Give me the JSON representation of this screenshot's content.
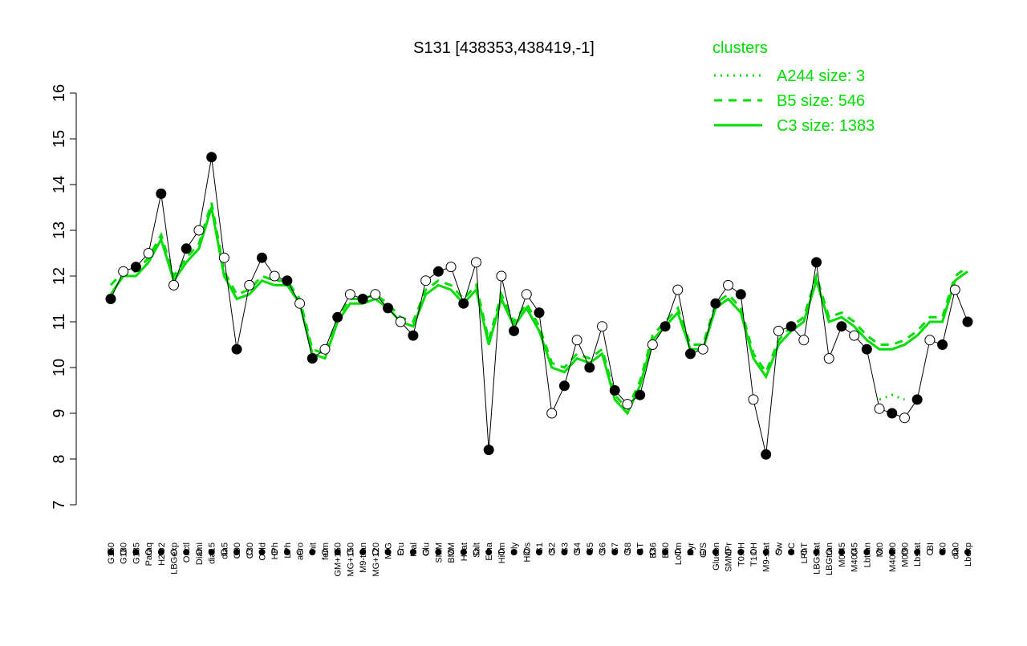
{
  "chart_data": {
    "type": "line",
    "title": "S131 [438353,438419,-1]",
    "legend_title": "clusters",
    "legend_position": "top-right",
    "categories": [
      "G150",
      "G180",
      "G135",
      "Paraq",
      "H2O2",
      "LBGexp",
      "Oxctl",
      "Diami",
      "dia15",
      "dia5",
      "C90",
      "C30",
      "Cold",
      "HPh",
      "LPh",
      "aero",
      "nit",
      "ferm",
      "GM+150",
      "MG+150",
      "M9-tran",
      "MG+120",
      "M/G",
      "Fru",
      "Mal",
      "Glu",
      "SMM",
      "BMM",
      "Heat",
      "Salt",
      "Etha",
      "HiTm",
      "Gly",
      "HiOs",
      "S1",
      "S2",
      "S3",
      "S4",
      "S5",
      "S6",
      "S7",
      "S8",
      "BT",
      "B36",
      "B60",
      "LoTm",
      "Pyr",
      "G/S",
      "Glucon",
      "SMMPr",
      "T0.0H",
      "T1.0H",
      "M9-stat",
      "Sw",
      "BC",
      "LPhT",
      "LBGstat",
      "LBGtran",
      "M0t45",
      "M40t45",
      "Lbtran",
      "Mt0",
      "M40t90",
      "M0t90",
      "Lbstat",
      "BI",
      "S0",
      "dia0",
      "Lbexp"
    ],
    "points": [
      11.5,
      12.1,
      12.2,
      12.5,
      13.8,
      11.8,
      12.6,
      13.0,
      14.6,
      12.4,
      10.4,
      11.8,
      12.4,
      12.0,
      11.9,
      11.4,
      10.2,
      10.4,
      11.1,
      11.6,
      11.5,
      11.6,
      11.3,
      11.0,
      10.7,
      11.9,
      12.1,
      12.2,
      11.4,
      12.3,
      8.2,
      12.0,
      10.8,
      11.6,
      11.2,
      9.0,
      9.6,
      10.6,
      10.0,
      10.9,
      9.5,
      9.2,
      9.4,
      10.5,
      10.9,
      11.7,
      10.3,
      10.4,
      11.4,
      11.8,
      11.6,
      9.3,
      8.1,
      10.8,
      10.9,
      10.6,
      12.3,
      10.2,
      10.9,
      10.7,
      10.4,
      9.1,
      9.0,
      8.9,
      9.3,
      10.6,
      10.5,
      11.7,
      11.0
    ],
    "series": [
      {
        "name": "A244 size: 3",
        "color": "#00dd00",
        "dash": "dotted",
        "values": [
          null,
          null,
          null,
          null,
          null,
          null,
          null,
          null,
          null,
          null,
          null,
          null,
          null,
          null,
          null,
          null,
          null,
          null,
          null,
          null,
          null,
          null,
          null,
          null,
          null,
          null,
          null,
          null,
          null,
          null,
          null,
          null,
          null,
          null,
          null,
          null,
          null,
          null,
          null,
          null,
          null,
          null,
          null,
          null,
          null,
          null,
          null,
          null,
          null,
          null,
          null,
          null,
          null,
          null,
          null,
          null,
          null,
          null,
          null,
          null,
          null,
          9.3,
          9.4,
          9.3,
          null,
          null,
          null,
          null,
          null
        ]
      },
      {
        "name": "B5 size: 546",
        "color": "#00dd00",
        "dash": "dashed",
        "values": [
          11.8,
          12.1,
          12.1,
          12.4,
          12.9,
          12.0,
          12.4,
          12.7,
          13.6,
          12.1,
          11.6,
          11.7,
          12.0,
          11.9,
          11.9,
          11.5,
          10.4,
          10.3,
          11.1,
          11.5,
          11.5,
          11.6,
          11.4,
          11.1,
          11.0,
          11.7,
          11.9,
          11.8,
          11.5,
          11.8,
          10.6,
          11.6,
          11.0,
          11.4,
          10.9,
          10.1,
          10.0,
          10.3,
          10.2,
          10.4,
          9.4,
          9.1,
          9.7,
          10.7,
          11.0,
          11.3,
          10.5,
          10.5,
          11.4,
          11.6,
          11.3,
          10.3,
          9.9,
          10.6,
          10.9,
          11.1,
          12.0,
          11.1,
          11.2,
          11.0,
          10.7,
          10.5,
          10.5,
          10.6,
          10.8,
          11.1,
          11.1,
          12.0,
          12.2
        ]
      },
      {
        "name": "C3 size: 1383",
        "color": "#00dd00",
        "dash": "solid",
        "values": [
          11.6,
          12.0,
          12.0,
          12.3,
          12.8,
          11.9,
          12.3,
          12.6,
          13.5,
          12.0,
          11.5,
          11.6,
          11.9,
          11.8,
          11.8,
          11.4,
          10.3,
          10.2,
          11.0,
          11.4,
          11.4,
          11.5,
          11.3,
          11.0,
          10.9,
          11.6,
          11.8,
          11.7,
          11.4,
          11.7,
          10.5,
          11.5,
          10.9,
          11.3,
          10.8,
          10.0,
          9.9,
          10.2,
          10.1,
          10.3,
          9.3,
          9.0,
          9.6,
          10.6,
          10.9,
          11.2,
          10.4,
          10.4,
          11.3,
          11.5,
          11.2,
          10.2,
          9.8,
          10.5,
          10.8,
          11.0,
          11.9,
          11.0,
          11.1,
          10.9,
          10.6,
          10.4,
          10.4,
          10.5,
          10.7,
          11.0,
          11.0,
          11.9,
          12.1
        ]
      }
    ],
    "ylim": [
      7,
      16
    ],
    "yticks": [
      7,
      8,
      9,
      10,
      11,
      12,
      13,
      14,
      15,
      16
    ]
  }
}
